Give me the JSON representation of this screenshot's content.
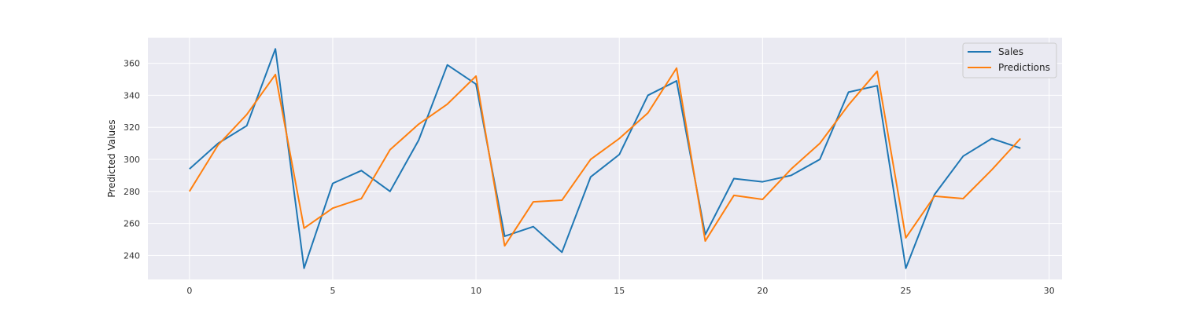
{
  "chart_data": {
    "type": "line",
    "title": "",
    "xlabel": "",
    "ylabel": "Predicted Values",
    "xlim": [
      -1.45,
      30.45
    ],
    "ylim": [
      225,
      376
    ],
    "xticks": [
      0,
      5,
      10,
      15,
      20,
      25,
      30
    ],
    "yticks": [
      240,
      260,
      280,
      300,
      320,
      340,
      360
    ],
    "grid": true,
    "legend_position": "top-right",
    "x": [
      0,
      1,
      2,
      3,
      4,
      5,
      6,
      7,
      8,
      9,
      10,
      11,
      12,
      13,
      14,
      15,
      16,
      17,
      18,
      19,
      20,
      21,
      22,
      23,
      24,
      25,
      26,
      27,
      28,
      29
    ],
    "series": [
      {
        "name": "Sales",
        "color": "#1f77b4",
        "values": [
          294,
          310,
          321,
          369,
          232,
          285,
          293,
          280,
          312,
          359,
          347,
          252,
          258,
          242,
          289,
          303,
          340,
          349,
          253,
          288,
          286,
          290,
          300,
          342,
          346,
          232,
          278,
          302,
          313,
          307
        ]
      },
      {
        "name": "Predictions",
        "color": "#ff7f0e",
        "values": [
          280,
          309,
          328,
          353,
          257,
          269.5,
          275.5,
          306,
          322,
          334.5,
          352,
          246,
          273.5,
          274.5,
          300,
          313,
          329,
          357,
          249,
          277.5,
          275,
          294,
          310,
          334,
          355,
          251,
          277,
          275.5,
          293.5,
          313
        ]
      }
    ]
  },
  "style": {
    "plot_background": "#eaeaf2",
    "grid_color": "#ffffff"
  }
}
